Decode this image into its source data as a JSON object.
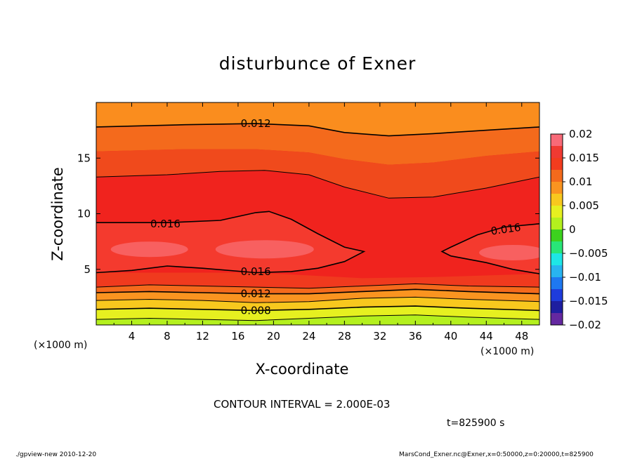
{
  "chart_data": {
    "type": "heatmap",
    "title": "disturbunce of Exner",
    "xlabel": "X-coordinate",
    "ylabel": "Z-coordinate",
    "x_unit_label": "(×1000 m)",
    "xlim": [
      0,
      50
    ],
    "ylim": [
      0,
      20
    ],
    "x_ticks": [
      4,
      8,
      12,
      16,
      20,
      24,
      28,
      32,
      36,
      40,
      44,
      48
    ],
    "y_ticks": [
      5,
      10,
      15
    ],
    "contour_interval_text": "CONTOUR INTERVAL = 2.000E-03",
    "time_text": "t=825900 s",
    "colorbar": {
      "ticks": [
        "0.02",
        "0.015",
        "0.01",
        "0.005",
        "0",
        "−0.005",
        "−0.01",
        "−0.015",
        "−0.02"
      ],
      "range": [
        -0.02,
        0.02
      ]
    },
    "contour_labels": [
      {
        "text": "0.012",
        "x": 18,
        "z": 18.1
      },
      {
        "text": "0.016",
        "x": 7.8,
        "z": 9.1
      },
      {
        "text": "0.016",
        "x": 46.2,
        "z": 8.6
      },
      {
        "text": "0.016",
        "x": 18,
        "z": 4.8
      },
      {
        "text": "0.012",
        "x": 18,
        "z": 2.8
      },
      {
        "text": "0.008",
        "x": 18,
        "z": 1.3
      }
    ],
    "contours": [
      {
        "level": 0.012,
        "points": [
          [
            0,
            17.8
          ],
          [
            10,
            18.0
          ],
          [
            18,
            18.1
          ],
          [
            24,
            17.9
          ],
          [
            28,
            17.3
          ],
          [
            33,
            17.0
          ],
          [
            38,
            17.2
          ],
          [
            44,
            17.5
          ],
          [
            50,
            17.8
          ]
        ]
      },
      {
        "level": 0.014,
        "points": [
          [
            0,
            13.3
          ],
          [
            8,
            13.5
          ],
          [
            14,
            13.8
          ],
          [
            19,
            13.9
          ],
          [
            24,
            13.5
          ],
          [
            28,
            12.4
          ],
          [
            33,
            11.4
          ],
          [
            38,
            11.5
          ],
          [
            44,
            12.3
          ],
          [
            50,
            13.3
          ]
        ]
      },
      {
        "level": 0.016,
        "points": [
          [
            0,
            9.2
          ],
          [
            8,
            9.2
          ],
          [
            14,
            9.4
          ],
          [
            18,
            10.1
          ],
          [
            19.5,
            10.2
          ],
          [
            22,
            9.5
          ],
          [
            25,
            8.2
          ],
          [
            28,
            7.0
          ],
          [
            30.2,
            6.6
          ],
          [
            28,
            5.7
          ],
          [
            25,
            5.1
          ],
          [
            22,
            4.8
          ],
          [
            18,
            4.7
          ],
          [
            12,
            5.1
          ],
          [
            8,
            5.3
          ],
          [
            4,
            4.9
          ],
          [
            0,
            4.7
          ]
        ]
      },
      {
        "level": 0.016,
        "points": [
          [
            50,
            9.1
          ],
          [
            46,
            8.8
          ],
          [
            43,
            8.1
          ],
          [
            40,
            7.0
          ],
          [
            39,
            6.6
          ],
          [
            40,
            6.2
          ],
          [
            44,
            5.6
          ],
          [
            47,
            5.0
          ],
          [
            50,
            4.6
          ]
        ]
      },
      {
        "level": 0.014,
        "points": [
          [
            0,
            3.4
          ],
          [
            6,
            3.6
          ],
          [
            12,
            3.5
          ],
          [
            18,
            3.4
          ],
          [
            24,
            3.3
          ],
          [
            30,
            3.5
          ],
          [
            36,
            3.7
          ],
          [
            42,
            3.5
          ],
          [
            50,
            3.4
          ]
        ]
      },
      {
        "level": 0.012,
        "points": [
          [
            0,
            2.9
          ],
          [
            6,
            3.0
          ],
          [
            12,
            2.9
          ],
          [
            18,
            2.8
          ],
          [
            24,
            2.8
          ],
          [
            30,
            3.0
          ],
          [
            36,
            3.2
          ],
          [
            42,
            3.0
          ],
          [
            50,
            2.8
          ]
        ]
      },
      {
        "level": 0.01,
        "points": [
          [
            0,
            2.2
          ],
          [
            6,
            2.3
          ],
          [
            12,
            2.2
          ],
          [
            18,
            2.0
          ],
          [
            24,
            2.1
          ],
          [
            30,
            2.4
          ],
          [
            36,
            2.5
          ],
          [
            42,
            2.3
          ],
          [
            50,
            2.1
          ]
        ]
      },
      {
        "level": 0.008,
        "points": [
          [
            0,
            1.4
          ],
          [
            6,
            1.5
          ],
          [
            12,
            1.4
          ],
          [
            18,
            1.3
          ],
          [
            24,
            1.4
          ],
          [
            30,
            1.6
          ],
          [
            36,
            1.7
          ],
          [
            42,
            1.5
          ],
          [
            50,
            1.3
          ]
        ]
      },
      {
        "level": 0.006,
        "points": [
          [
            0,
            0.5
          ],
          [
            6,
            0.6
          ],
          [
            12,
            0.5
          ],
          [
            18,
            0.4
          ],
          [
            24,
            0.6
          ],
          [
            30,
            0.8
          ],
          [
            36,
            0.9
          ],
          [
            42,
            0.7
          ],
          [
            50,
            0.5
          ]
        ]
      }
    ]
  },
  "footer": {
    "left": "./gpview-new   2010-12-20",
    "right": "MarsCond_Exner.nc@Exner,x=0:50000,z=0:20000,t=825900"
  }
}
